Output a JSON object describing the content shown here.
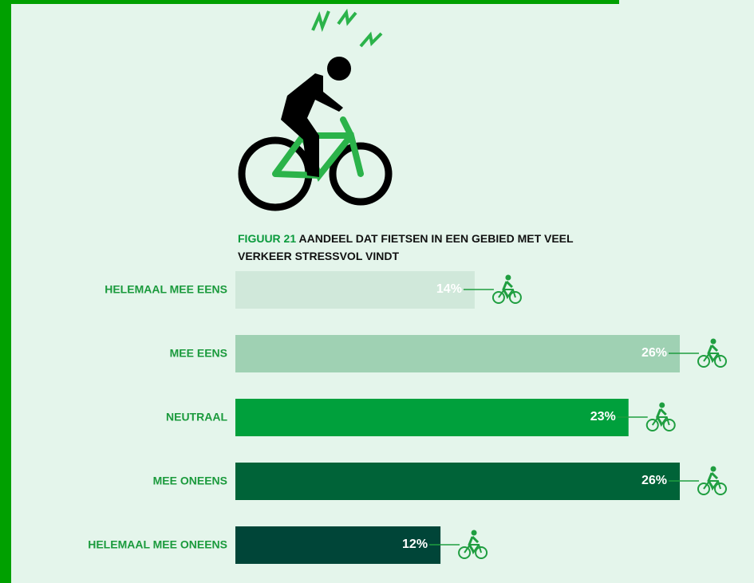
{
  "chart_data": {
    "type": "bar",
    "orientation": "horizontal",
    "figure_label": "FIGUUR 21",
    "title": "AANDEEL DAT FIETSEN IN EEN GEBIED MET VEEL VERKEER STRESSVOL VINDT",
    "categories": [
      "HELEMAAL MEE EENS",
      "MEE EENS",
      "NEUTRAAL",
      "MEE ONEENS",
      "HELEMAAL MEE ONEENS"
    ],
    "values": [
      14,
      26,
      23,
      26,
      12
    ],
    "value_labels": [
      "14%",
      "26%",
      "23%",
      "26%",
      "12%"
    ],
    "colors": [
      "#d0e8da",
      "#9fd1b3",
      "#00a03c",
      "#006338",
      "#004538"
    ]
  }
}
